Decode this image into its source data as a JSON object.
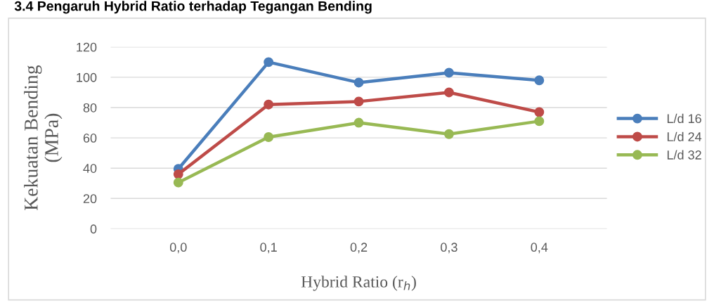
{
  "chart_data": {
    "type": "line",
    "title": "3.4 Pengaruh Hybrid Ratio terhadap Tegangan Bending",
    "xlabel": "Hybrid Ratio (r$_{h}$)",
    "ylabel": "Kekuatan Bending\n(MPa)",
    "categories": [
      "0,0",
      "0,1",
      "0,2",
      "0,3",
      "0,4"
    ],
    "series": [
      {
        "name": "L/d 16",
        "color": "#4a7ebb",
        "values": [
          39.5,
          110,
          96.5,
          103,
          98
        ]
      },
      {
        "name": "L/d 24",
        "color": "#be4b48",
        "values": [
          36,
          82,
          84,
          90,
          77
        ]
      },
      {
        "name": "L/d 32",
        "color": "#98b954",
        "values": [
          30.5,
          60.5,
          70,
          62.5,
          71
        ]
      }
    ],
    "ylim": [
      0,
      120
    ],
    "yticks": [
      0,
      20,
      40,
      60,
      80,
      100,
      120
    ],
    "grid": "y",
    "legend": "right",
    "marker": "circle",
    "line_style": "solid"
  }
}
